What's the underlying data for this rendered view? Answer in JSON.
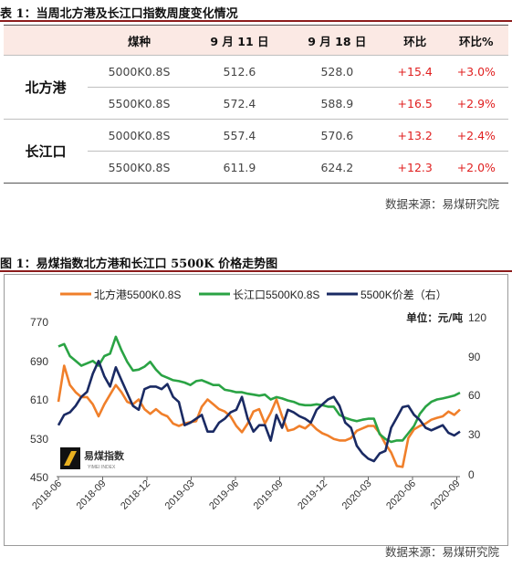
{
  "table": {
    "caption": "表 1：当周北方港及长江口指数周度变化情况",
    "headers": [
      "煤种",
      "9 月 11 日",
      "9 月 18 日",
      "环比",
      "环比%"
    ],
    "groups": [
      {
        "region": "北方港",
        "rows": [
          {
            "type": "5000K0.8S",
            "sep11": "512.6",
            "sep18": "528.0",
            "chg": "+15.4",
            "pct": "+3.0%"
          },
          {
            "type": "5500K0.8S",
            "sep11": "572.4",
            "sep18": "588.9",
            "chg": "+16.5",
            "pct": "+2.9%"
          }
        ]
      },
      {
        "region": "长江口",
        "rows": [
          {
            "type": "5000K0.8S",
            "sep11": "557.4",
            "sep18": "570.6",
            "chg": "+13.2",
            "pct": "+2.4%"
          },
          {
            "type": "5500K0.8S",
            "sep11": "611.9",
            "sep18": "624.2",
            "chg": "+12.3",
            "pct": "+2.0%"
          }
        ]
      }
    ],
    "source": "数据来源：易煤研究院"
  },
  "figure": {
    "caption": "图 1：易煤指数北方港和长江口 5500K 价格走势图",
    "source": "数据来源：易煤研究院",
    "unit": "单位：元/吨",
    "watermark": {
      "name": "易煤指数",
      "tagline": "YIMEI INDEX"
    }
  },
  "chart_data": {
    "type": "line",
    "series": [
      {
        "name": "北方港5500K0.8S",
        "color": "#f07f2a",
        "axis": "left",
        "values": [
          605,
          680,
          640,
          625,
          615,
          615,
          600,
          575,
          600,
          620,
          640,
          625,
          605,
          600,
          610,
          590,
          580,
          590,
          580,
          575,
          560,
          555,
          560,
          563,
          565,
          595,
          610,
          600,
          590,
          585,
          575,
          555,
          542,
          560,
          585,
          590,
          560,
          582,
          610,
          575,
          545,
          548,
          555,
          550,
          560,
          548,
          540,
          535,
          528,
          525,
          525,
          530,
          545,
          550,
          555,
          555,
          540,
          518,
          500,
          472,
          470,
          530,
          548,
          555,
          560,
          568,
          572,
          575,
          585,
          578,
          589
        ]
      },
      {
        "name": "长江口5500K0.8S",
        "color": "#2aa344",
        "axis": "left",
        "values": [
          720,
          725,
          700,
          690,
          680,
          685,
          690,
          680,
          700,
          705,
          740,
          712,
          688,
          670,
          672,
          678,
          688,
          672,
          660,
          655,
          650,
          648,
          645,
          640,
          648,
          650,
          645,
          640,
          640,
          630,
          628,
          625,
          625,
          622,
          620,
          618,
          620,
          610,
          615,
          612,
          608,
          605,
          600,
          598,
          598,
          600,
          598,
          595,
          595,
          578,
          572,
          568,
          565,
          568,
          570,
          570,
          538,
          528,
          522,
          525,
          525,
          540,
          555,
          580,
          595,
          605,
          610,
          612,
          615,
          618,
          624
        ]
      },
      {
        "name": "5500K价差（右）",
        "color": "#1a2a63",
        "axis": "right",
        "values": [
          40,
          48,
          50,
          55,
          62,
          66,
          80,
          90,
          78,
          70,
          85,
          75,
          65,
          55,
          52,
          68,
          70,
          70,
          68,
          72,
          62,
          58,
          40,
          42,
          45,
          48,
          35,
          35,
          42,
          45,
          50,
          52,
          62,
          45,
          35,
          40,
          40,
          28,
          48,
          38,
          52,
          50,
          47,
          45,
          42,
          52,
          56,
          60,
          62,
          55,
          42,
          38,
          24,
          18,
          14,
          12,
          18,
          20,
          38,
          46,
          54,
          55,
          48,
          44,
          38,
          36,
          38,
          40,
          34,
          32,
          35
        ]
      }
    ],
    "x_tick_labels": [
      "2018-06",
      "2018-09",
      "2018-12",
      "2019-03",
      "2019-06",
      "2019-09",
      "2019-12",
      "2020-03",
      "2020-06",
      "2020-09"
    ],
    "ylim_left": [
      450,
      770
    ],
    "yticks_left": [
      "770",
      "690",
      "610",
      "530",
      "450"
    ],
    "ylim_right": [
      0,
      120
    ],
    "yticks_right": [
      "120",
      "90",
      "60",
      "30",
      "0"
    ],
    "legend_position": "top",
    "grid": false
  }
}
